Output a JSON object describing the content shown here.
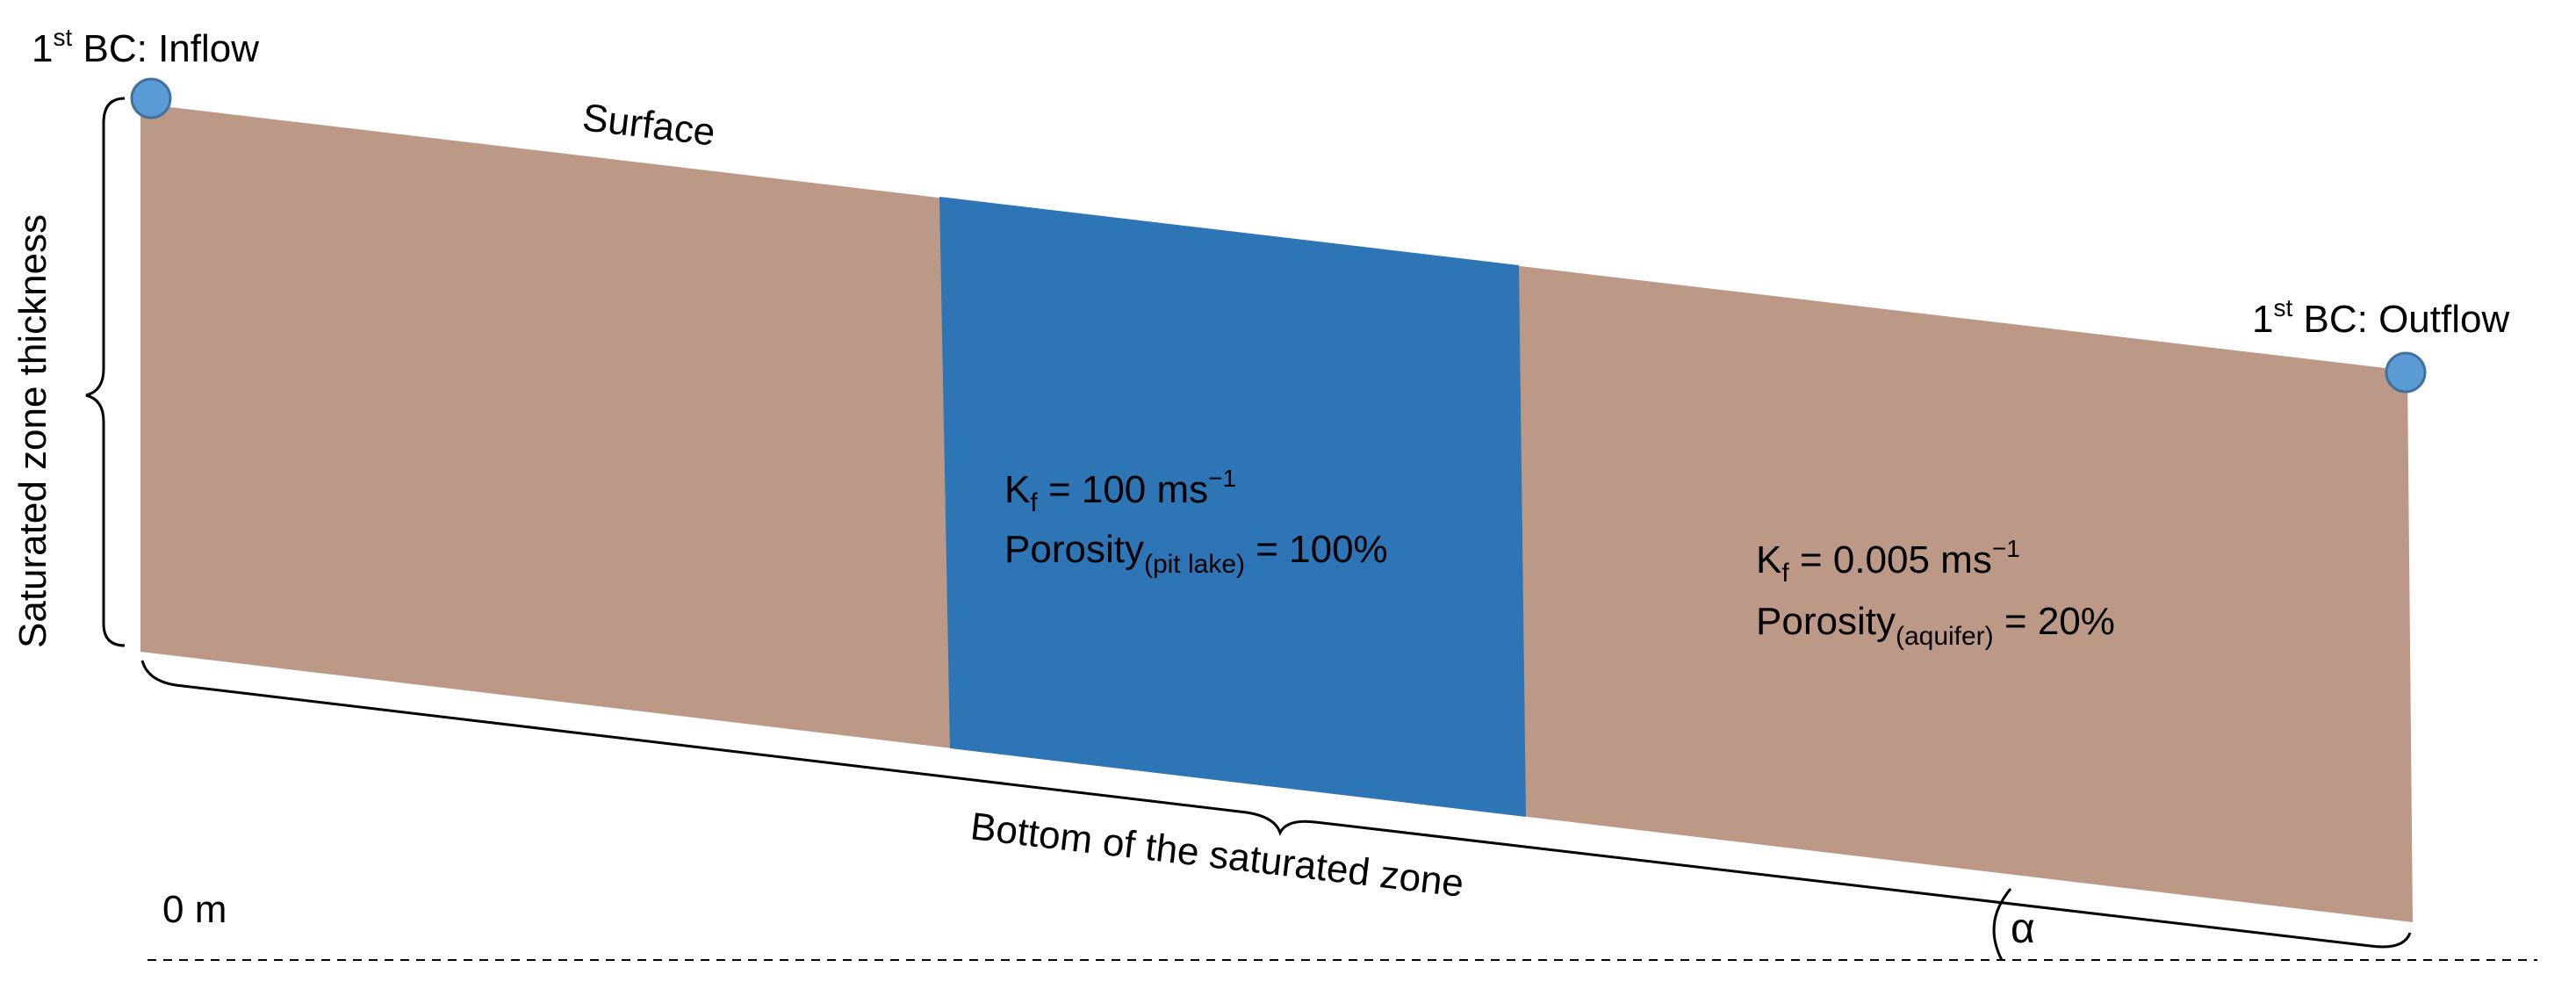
{
  "labels": {
    "inflow_sup": "st",
    "inflow_pre": "1",
    "inflow_rest": " BC: Inflow",
    "outflow_pre": "1",
    "outflow_sup": "st",
    "outflow_rest": " BC: Outflow",
    "surface": "Surface",
    "thickness": "Saturated zone thickness",
    "bottom": "Bottom of the saturated zone",
    "zero": "0 m",
    "alpha": "α"
  },
  "pit_lake": {
    "k_main": "K",
    "k_sub": "f",
    "k_value": " = 100 ms",
    "k_exp": "−1",
    "porosity_main": "Porosity",
    "porosity_sub": "(pit lake)",
    "porosity_value": " = 100%"
  },
  "aquifer": {
    "k_main": "K",
    "k_sub": "f",
    "k_value": " = 0.005 ms",
    "k_exp": "−1",
    "porosity_main": "Porosity",
    "porosity_sub": "(aquifer)",
    "porosity_value": " = 20%"
  },
  "colors": {
    "aquifer": "#bc9886",
    "pit_lake": "#2e75b6",
    "boundary_node": "#5b9bd5",
    "node_stroke": "#41719c"
  }
}
